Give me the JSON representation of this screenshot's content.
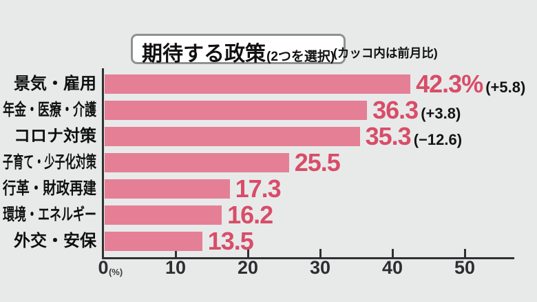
{
  "header": {
    "title_main": "期待する政策",
    "title_paren": "(2つを選択)",
    "note": "(カッコ内は前月比)"
  },
  "chart_data": {
    "type": "bar",
    "orientation": "horizontal",
    "title": "期待する政策(2つを選択)",
    "subtitle": "カッコ内は前月比",
    "categories": [
      "景気・雇用",
      "年金・医療・介護",
      "コロナ対策",
      "子育て・少子化対策",
      "行革・財政再建",
      "環境・エネルギー",
      "外交・安保"
    ],
    "values": [
      42.3,
      36.3,
      35.3,
      25.5,
      17.3,
      16.2,
      13.5
    ],
    "value_labels": [
      "42.3%",
      "36.3",
      "35.3",
      "25.5",
      "17.3",
      "16.2",
      "13.5"
    ],
    "change_labels": [
      "(+5.8)",
      "(+3.8)",
      "(−12.6)",
      "",
      "",
      "",
      ""
    ],
    "x_ticks": [
      0,
      10,
      20,
      30,
      40,
      50
    ],
    "x_axis_unit_label": "(%)",
    "xlim": [
      0,
      57
    ],
    "grid": false,
    "legend": "none",
    "colors": {
      "bar": "#e57f96",
      "value_text": "#d84d68",
      "axis": "#2d3132",
      "background": "#e8eaea",
      "title_box_border": "#8e9192",
      "title_box_bg": "#ffffff"
    }
  }
}
